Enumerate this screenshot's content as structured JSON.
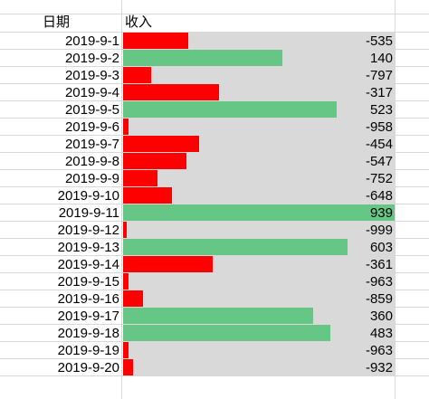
{
  "sheet": {
    "header_date": "日期",
    "header_value": "收入"
  },
  "chart_data": {
    "type": "table",
    "columns": [
      "日期",
      "收入"
    ],
    "categories": [
      "2019-9-1",
      "2019-9-2",
      "2019-9-3",
      "2019-9-4",
      "2019-9-5",
      "2019-9-6",
      "2019-9-7",
      "2019-9-8",
      "2019-9-9",
      "2019-9-10",
      "2019-9-11",
      "2019-9-12",
      "2019-9-13",
      "2019-9-14",
      "2019-9-15",
      "2019-9-16",
      "2019-9-17",
      "2019-9-18",
      "2019-9-19",
      "2019-9-20"
    ],
    "values": [
      -535,
      140,
      -797,
      -317,
      523,
      -958,
      -454,
      -547,
      -752,
      -648,
      939,
      -999,
      603,
      -361,
      -963,
      -859,
      360,
      483,
      -963,
      -932
    ],
    "data_bars": true,
    "positive_color": "#66c685",
    "negative_color": "#ff0000",
    "track_color": "#d9d9d9"
  }
}
